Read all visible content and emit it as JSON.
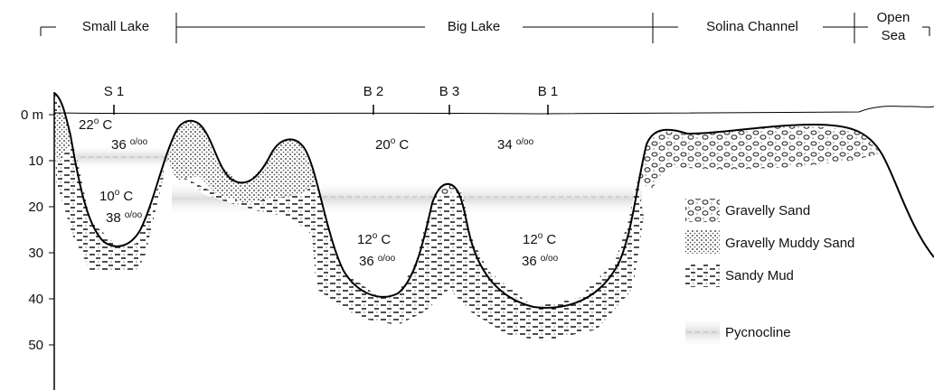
{
  "regions": [
    "Small Lake",
    "Big Lake",
    "Solina Channel",
    {
      "lines": [
        "Open",
        "Sea"
      ]
    }
  ],
  "stations": [
    "S 1",
    "B 2",
    "B 3",
    "B 1"
  ],
  "depth_labels": [
    "0 m",
    "10",
    "20",
    "30",
    "40",
    "50"
  ],
  "annotations": {
    "temperatures": [
      {
        "value": "22",
        "sup": "o",
        "unit": " C"
      },
      {
        "value": "10",
        "sup": "o",
        "unit": " C"
      },
      {
        "value": "20",
        "sup": "o",
        "unit": " C"
      },
      {
        "value": "12",
        "sup": "o",
        "unit": " C"
      },
      {
        "value": "12",
        "sup": "o",
        "unit": " C"
      }
    ],
    "salinities": [
      {
        "value": "36",
        "sup": "o/oo"
      },
      {
        "value": "38",
        "sup": "o/oo"
      },
      {
        "value": "34",
        "sup": "o/oo"
      },
      {
        "value": "36",
        "sup": "o/oo"
      },
      {
        "value": "36",
        "sup": "o/oo"
      }
    ]
  },
  "legend": [
    "Gravelly Sand",
    "Gravelly Muddy Sand",
    "Sandy Mud",
    "Pycnocline"
  ]
}
